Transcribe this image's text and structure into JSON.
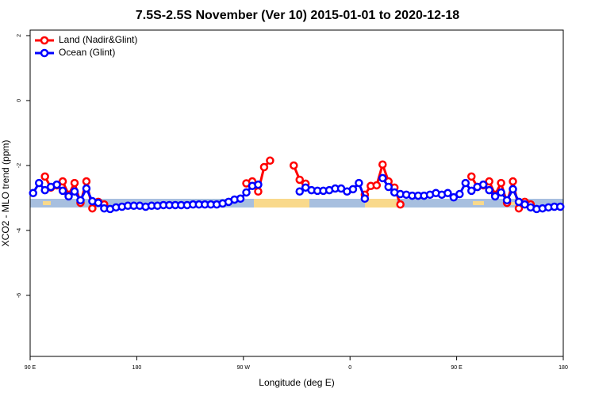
{
  "chart_data": {
    "type": "line",
    "title": "7.5S-2.5S November (Ver 10)   2015-01-01 to 2020-12-18",
    "x_label": "Longitude (deg E)",
    "y_label": "XCO2 - MLO trend (ppm)",
    "xlim": [
      90,
      540
    ],
    "ylim": [
      -7.88,
      2.17
    ],
    "xticks": [
      {
        "value": 90,
        "label": "90 E"
      },
      180,
      {
        "value": 270,
        "label": "90 W"
      },
      {
        "value": 360,
        "label": "0"
      },
      {
        "value": 450,
        "label": "90 E"
      },
      {
        "value": 540,
        "label": "180"
      }
    ],
    "yticks": [
      2,
      0,
      -2,
      -4,
      -6
    ],
    "legend": "top-left",
    "x": [
      92.5,
      97.5,
      102.5,
      107.5,
      112.5,
      117.5,
      122.5,
      127.5,
      132.5,
      137.5,
      142.5,
      147.5,
      152.5,
      157.5,
      162.5,
      167.5,
      172.5,
      177.5,
      182.5,
      187.5,
      192.5,
      197.5,
      202.5,
      207.5,
      212.5,
      217.5,
      222.5,
      227.5,
      232.5,
      237.5,
      242.5,
      247.5,
      252.5,
      257.5,
      262.5,
      267.5,
      272.5,
      277.5,
      282.5,
      287.5,
      292.5,
      297.5,
      302.5,
      307.5,
      312.5,
      317.5,
      322.5,
      327.5,
      332.5,
      337.5,
      342.5,
      347.5,
      352.5,
      357.5,
      362.5,
      367.5,
      372.5,
      377.5,
      382.5,
      387.5,
      392.5,
      397.5,
      402.5,
      407.5,
      412.5,
      417.5,
      422.5,
      427.5,
      432.5,
      437.5,
      442.5,
      447.5,
      452.5,
      457.5,
      462.5,
      467.5,
      472.5,
      477.5,
      482.5,
      487.5,
      492.5,
      497.5,
      502.5,
      507.5,
      512.5,
      517.5,
      522.5,
      527.5,
      532.5,
      537.5
    ],
    "series": [
      {
        "name": "Land (Nadir&Glint)",
        "color": "#ff0000",
        "values": [
          null,
          null,
          -2.34,
          -2.68,
          -2.61,
          -2.49,
          -2.9,
          -2.54,
          -3.15,
          -2.49,
          -3.32,
          -3.12,
          -3.2,
          null,
          null,
          null,
          null,
          null,
          null,
          null,
          null,
          null,
          null,
          null,
          null,
          null,
          null,
          null,
          null,
          null,
          null,
          null,
          null,
          null,
          null,
          null,
          -2.55,
          -2.49,
          -2.8,
          -2.05,
          -1.85,
          null,
          null,
          null,
          -2.0,
          -2.44,
          -2.56,
          null,
          null,
          null,
          null,
          null,
          null,
          null,
          null,
          null,
          -2.9,
          -2.63,
          -2.61,
          -1.97,
          -2.49,
          -2.68,
          -3.2,
          null,
          null,
          null,
          null,
          null,
          null,
          null,
          null,
          null,
          null,
          null,
          -2.34,
          -2.66,
          -2.61,
          -2.49,
          -2.9,
          -2.54,
          -3.15,
          -2.49,
          -3.32,
          -3.12,
          -3.2,
          null,
          null,
          null,
          null,
          null
        ]
      },
      {
        "name": "Ocean (Glint)",
        "color": "#0000ff",
        "values": [
          -2.85,
          -2.54,
          -2.76,
          -2.66,
          -2.59,
          -2.78,
          -2.95,
          -2.8,
          -3.07,
          -2.71,
          -3.1,
          -3.15,
          -3.32,
          -3.34,
          -3.29,
          -3.27,
          -3.24,
          -3.24,
          -3.24,
          -3.27,
          -3.24,
          -3.24,
          -3.22,
          -3.22,
          -3.22,
          -3.22,
          -3.22,
          -3.2,
          -3.2,
          -3.2,
          -3.2,
          -3.2,
          -3.17,
          -3.12,
          -3.05,
          -3.02,
          -2.83,
          -2.63,
          -2.59,
          null,
          null,
          null,
          null,
          null,
          null,
          -2.8,
          -2.68,
          -2.76,
          -2.78,
          -2.78,
          -2.76,
          -2.71,
          -2.71,
          -2.8,
          -2.73,
          -2.54,
          -3.02,
          null,
          null,
          -2.39,
          -2.66,
          -2.83,
          -2.88,
          -2.9,
          -2.93,
          -2.93,
          -2.93,
          -2.9,
          -2.85,
          -2.9,
          -2.85,
          -2.98,
          -2.88,
          -2.54,
          -2.78,
          -2.66,
          -2.59,
          -2.76,
          -2.95,
          -2.83,
          -3.07,
          -2.73,
          -3.12,
          -3.2,
          -3.29,
          -3.34,
          -3.32,
          -3.29,
          -3.27,
          -3.27
        ]
      }
    ]
  }
}
